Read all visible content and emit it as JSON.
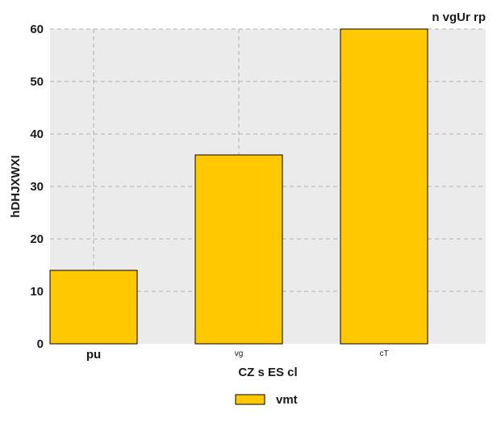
{
  "chart_data": {
    "type": "bar",
    "title": "n vgUr rp",
    "xlabel": "CZ s ES cl",
    "ylabel": "hDHJXWXI",
    "categories": [
      "pu",
      "vg",
      "cT"
    ],
    "series": [
      {
        "name": "vmt",
        "values": [
          14,
          36,
          60
        ],
        "color": "#ffc800"
      }
    ],
    "ylim": [
      0,
      60
    ],
    "yticks": [
      0,
      10,
      20,
      30,
      40,
      50,
      60
    ],
    "grid": true,
    "legend": "bottom-center",
    "colors": {
      "background": "#ebebeb",
      "grid": "#b0b0b0",
      "bar_edge": "#000000"
    }
  }
}
